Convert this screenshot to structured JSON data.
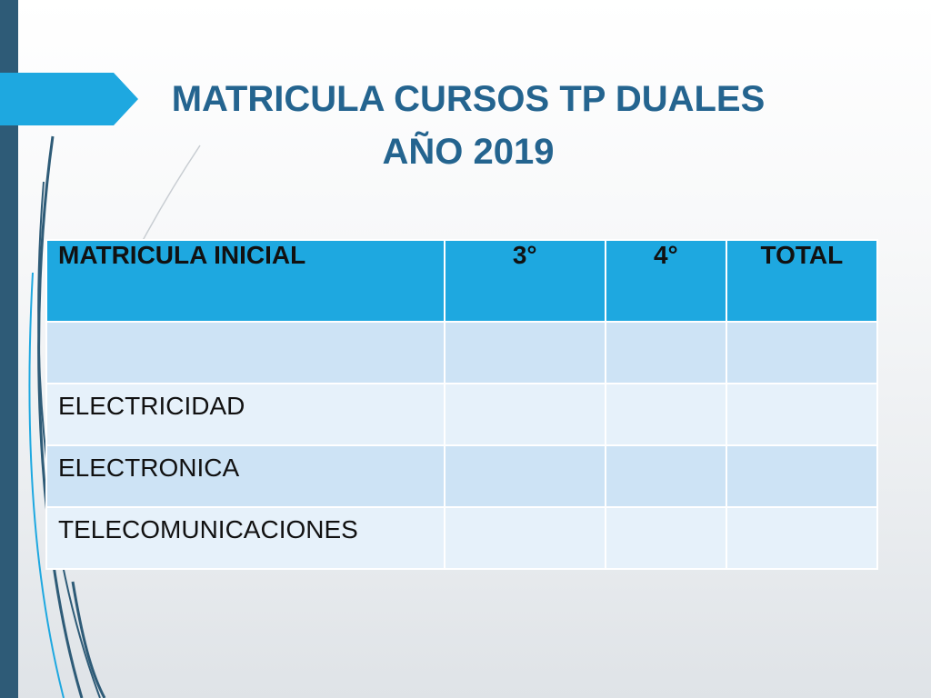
{
  "slide": {
    "title_line1": "MATRICULA CURSOS TP  DUALES",
    "title_line2": "AÑO 2019"
  },
  "table": {
    "headers": [
      "MATRICULA INICIAL",
      "3°",
      "4°",
      "TOTAL"
    ],
    "rows": [
      [
        "",
        "",
        "",
        ""
      ],
      [
        "ELECTRICIDAD",
        "",
        "",
        ""
      ],
      [
        "ELECTRONICA",
        "",
        "",
        ""
      ],
      [
        "TELECOMUNICACIONES",
        "",
        "",
        ""
      ]
    ]
  },
  "colors": {
    "title": "#24648f",
    "header_bg": "#1ea8e0",
    "row_dark": "#cde3f5",
    "row_light": "#e6f1fa",
    "left_bar": "#2e5b77"
  }
}
